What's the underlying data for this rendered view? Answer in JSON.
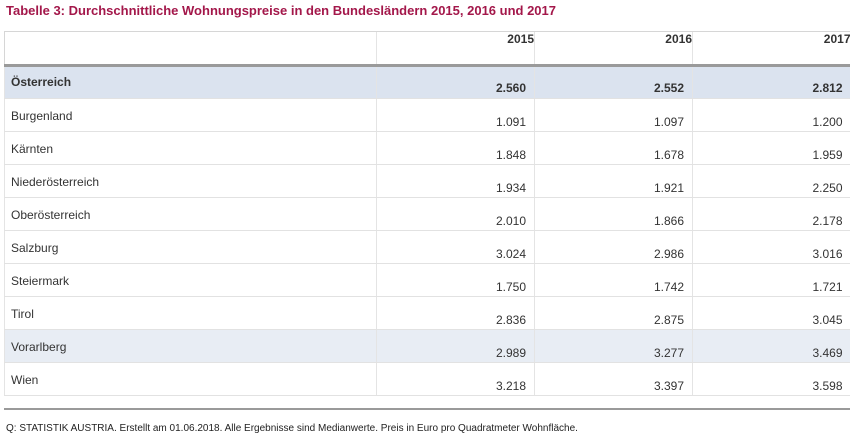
{
  "title": "Tabelle 3: Durchschnittliche Wohnungspreise in den Bundesländern 2015, 2016 und 2017",
  "table": {
    "columns": [
      "",
      "2015",
      "2016",
      "2017"
    ],
    "rows": [
      {
        "label": "Österreich",
        "values": [
          "2.560",
          "2.552",
          "2.812"
        ]
      },
      {
        "label": "Burgenland",
        "values": [
          "1.091",
          "1.097",
          "1.200"
        ]
      },
      {
        "label": "Kärnten",
        "values": [
          "1.848",
          "1.678",
          "1.959"
        ]
      },
      {
        "label": "Niederösterreich",
        "values": [
          "1.934",
          "1.921",
          "2.250"
        ]
      },
      {
        "label": "Oberösterreich",
        "values": [
          "2.010",
          "1.866",
          "2.178"
        ]
      },
      {
        "label": "Salzburg",
        "values": [
          "3.024",
          "2.986",
          "3.016"
        ]
      },
      {
        "label": "Steiermark",
        "values": [
          "1.750",
          "1.742",
          "1.721"
        ]
      },
      {
        "label": "Tirol",
        "values": [
          "2.836",
          "2.875",
          "3.045"
        ]
      },
      {
        "label": "Vorarlberg",
        "values": [
          "2.989",
          "3.277",
          "3.469"
        ]
      },
      {
        "label": "Wien",
        "values": [
          "3.218",
          "3.397",
          "3.598"
        ]
      }
    ]
  },
  "footer": "Q: STATISTIK AUSTRIA. Erstellt am 01.06.2018. Alle Ergebnisse sind Medianwerte. Preis in Euro pro Quadratmeter Wohnfläche.",
  "colors": {
    "title": "#a3174a",
    "total_row_bg": "#dbe3ef",
    "highlight_row_bg": "#e8edf4"
  }
}
